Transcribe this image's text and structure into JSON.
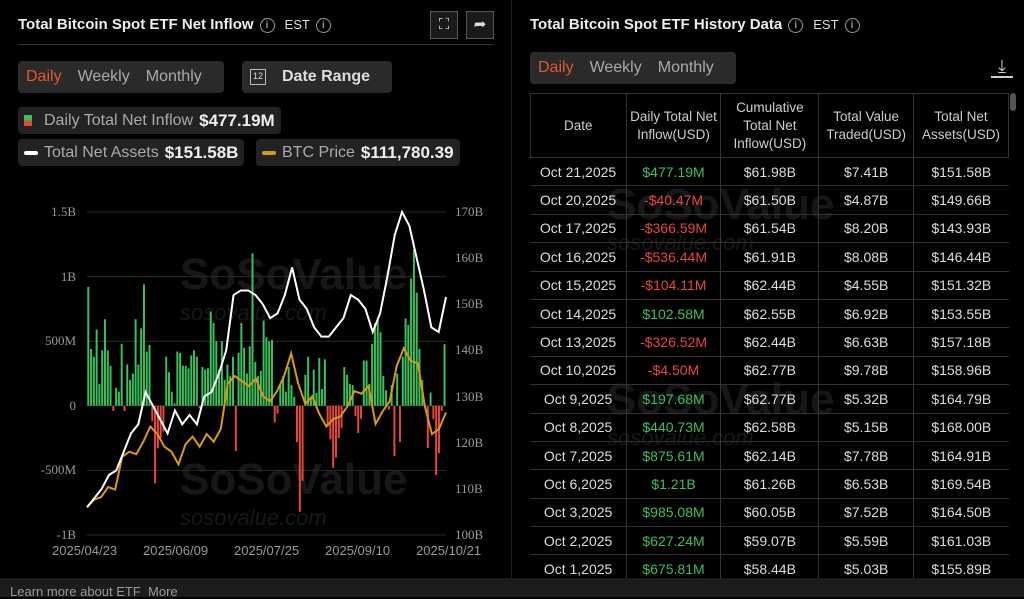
{
  "left": {
    "title": "Total Bitcoin Spot ETF Net Inflow",
    "timezone": "EST",
    "tabs": [
      "Daily",
      "Weekly",
      "Monthly"
    ],
    "active_tab": "Daily",
    "date_range": "Date Range",
    "calendar_day": "12",
    "legend": {
      "inflow_label": "Daily Total Net Inflow",
      "inflow_value": "$477.19M",
      "assets_label": "Total Net Assets",
      "assets_value": "$151.58B",
      "btc_label": "BTC Price",
      "btc_value": "$111,780.39"
    },
    "watermark": "SoSoValue",
    "watermark_url": "sosovalue.com"
  },
  "right": {
    "title": "Total Bitcoin Spot ETF History Data",
    "timezone": "EST",
    "tabs": [
      "Daily",
      "Weekly",
      "Monthly"
    ],
    "active_tab": "Daily",
    "columns": [
      "Date",
      "Daily Total Net Inflow(USD)",
      "Cumulative Total Net Inflow(USD)",
      "Total Value Traded(USD)",
      "Total Net Assets(USD)"
    ],
    "rows": [
      [
        "Oct 21,2025",
        "$477.19M",
        "$61.98B",
        "$7.41B",
        "$151.58B"
      ],
      [
        "Oct 20,2025",
        "-$40.47M",
        "$61.50B",
        "$4.87B",
        "$149.66B"
      ],
      [
        "Oct 17,2025",
        "-$366.59M",
        "$61.54B",
        "$8.20B",
        "$143.93B"
      ],
      [
        "Oct 16,2025",
        "-$536.44M",
        "$61.91B",
        "$8.08B",
        "$146.44B"
      ],
      [
        "Oct 15,2025",
        "-$104.11M",
        "$62.44B",
        "$4.55B",
        "$151.32B"
      ],
      [
        "Oct 14,2025",
        "$102.58M",
        "$62.55B",
        "$6.92B",
        "$153.55B"
      ],
      [
        "Oct 13,2025",
        "-$326.52M",
        "$62.44B",
        "$6.63B",
        "$157.18B"
      ],
      [
        "Oct 10,2025",
        "-$4.50M",
        "$62.77B",
        "$9.78B",
        "$158.96B"
      ],
      [
        "Oct 9,2025",
        "$197.68M",
        "$62.77B",
        "$5.32B",
        "$164.79B"
      ],
      [
        "Oct 8,2025",
        "$440.73M",
        "$62.58B",
        "$5.15B",
        "$168.00B"
      ],
      [
        "Oct 7,2025",
        "$875.61M",
        "$62.14B",
        "$7.78B",
        "$164.91B"
      ],
      [
        "Oct 6,2025",
        "$1.21B",
        "$61.26B",
        "$6.53B",
        "$169.54B"
      ],
      [
        "Oct 3,2025",
        "$985.08M",
        "$60.05B",
        "$7.52B",
        "$164.50B"
      ],
      [
        "Oct 2,2025",
        "$627.24M",
        "$59.07B",
        "$5.59B",
        "$161.03B"
      ],
      [
        "Oct 1,2025",
        "$675.81M",
        "$58.44B",
        "$5.03B",
        "$155.89B"
      ]
    ]
  },
  "footer": {
    "text": "Learn more about ETF",
    "more": "More"
  },
  "colors": {
    "positive": "#3bbf5c",
    "negative": "#e5483c",
    "assets_line": "#ffffff",
    "btc_line": "#d99a12",
    "active_tab": "#e4572e"
  },
  "chart_data": {
    "type": "bar",
    "title": "Total Bitcoin Spot ETF Net Inflow",
    "x_ticks": [
      "2025/04/23",
      "2025/06/09",
      "2025/07/25",
      "2025/09/10",
      "2025/10/21"
    ],
    "y_left_ticks": [
      "1.5B",
      "1B",
      "500M",
      "0",
      "-500M",
      "-1B"
    ],
    "y_left_range": [
      -1000,
      1500
    ],
    "y_left_unit": "M USD",
    "y_right_ticks": [
      "170B",
      "160B",
      "150B",
      "140B",
      "130B",
      "120B",
      "110B",
      "100B"
    ],
    "y_right_range": [
      100,
      170
    ],
    "series": [
      {
        "name": "Daily Total Net Inflow",
        "type": "bar",
        "values": [
          920,
          440,
          380,
          590,
          170,
          430,
          670,
          430,
          310,
          -40,
          140,
          110,
          480,
          -40,
          320,
          200,
          250,
          670,
          320,
          600,
          940,
          420,
          470,
          -120,
          -600,
          -330,
          -250,
          -200,
          380,
          260,
          110,
          20,
          420,
          410,
          310,
          310,
          290,
          390,
          430,
          380,
          -20,
          300,
          280,
          290,
          730,
          640,
          500,
          280,
          500,
          200,
          320,
          230,
          380,
          -350,
          410,
          640,
          450,
          250,
          460,
          1180,
          340,
          230,
          270,
          660,
          530,
          500,
          510,
          -130,
          -60,
          170,
          230,
          110,
          300,
          160,
          70,
          -280,
          -820,
          -580,
          240,
          380,
          60,
          280,
          100,
          370,
          130,
          360,
          -160,
          -260,
          -480,
          -400,
          -250,
          -170,
          300,
          240,
          170,
          160,
          -80,
          -210,
          -100,
          350,
          350,
          170,
          480,
          640,
          680,
          570,
          230,
          120,
          -30,
          160,
          -390,
          250,
          -280,
          380,
          676,
          627,
          985,
          1210,
          876,
          441,
          198,
          -4.5,
          -327,
          103,
          -104,
          -536,
          -367,
          -40,
          477
        ]
      },
      {
        "name": "Total Net Assets",
        "type": "line",
        "unit": "B USD",
        "values": [
          106,
          108,
          110,
          113,
          114,
          118,
          122,
          124,
          131,
          128,
          125,
          122,
          127,
          124,
          126,
          124,
          130,
          131,
          135,
          140,
          152,
          153,
          153,
          152,
          150,
          147,
          148,
          152,
          158,
          151,
          149,
          145,
          143,
          143,
          145,
          147,
          152,
          151,
          149,
          144,
          148,
          156,
          165,
          170,
          167,
          160,
          153,
          145,
          144,
          151.58
        ]
      },
      {
        "name": "BTC Price",
        "type": "line",
        "unit": "USD",
        "values": [
          93000,
          94500,
          95000,
          97000,
          96500,
          103000,
          104000,
          103500,
          106000,
          109000,
          107500,
          105000,
          104000,
          101500,
          105500,
          107000,
          105000,
          107500,
          106000,
          108500,
          117500,
          119000,
          118000,
          117000,
          118500,
          115000,
          114000,
          116000,
          119000,
          123500,
          117500,
          113500,
          115000,
          111500,
          109000,
          110500,
          111000,
          113000,
          116000,
          115500,
          117000,
          109500,
          112000,
          114000,
          121000,
          124500,
          122000,
          121500,
          113000,
          107500,
          108500,
          111780
        ]
      }
    ]
  }
}
